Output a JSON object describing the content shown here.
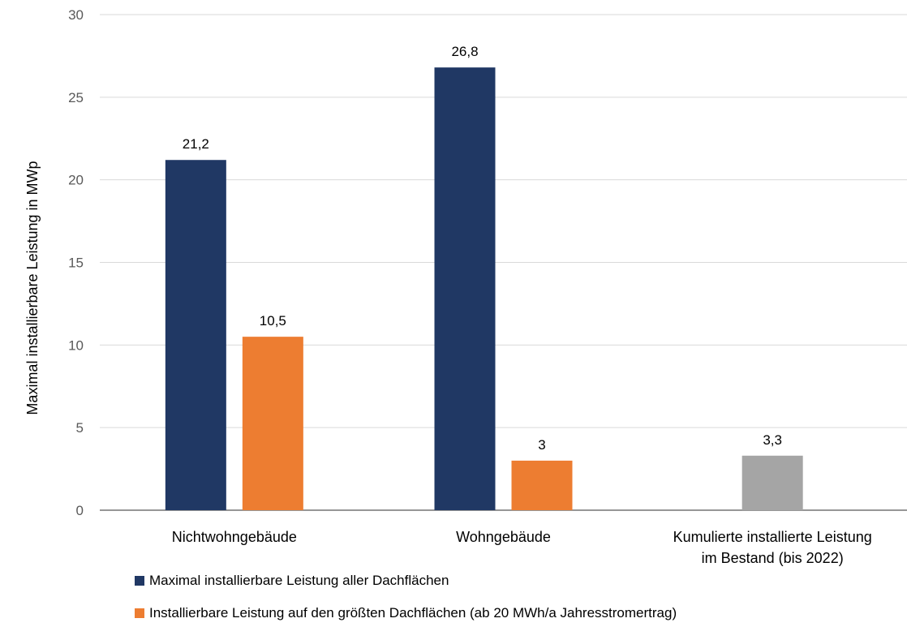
{
  "chart_data": {
    "type": "bar",
    "ylabel": "Maximal installierbare Leistung in MWp",
    "ylim": [
      0,
      30
    ],
    "yticks": [
      0,
      5,
      10,
      15,
      20,
      25,
      30
    ],
    "grid": true,
    "legend_position": "bottom",
    "categories": [
      [
        "Nichtwohngebäude"
      ],
      [
        "Wohngebäude"
      ],
      [
        "Kumulierte installierte Leistung",
        "im Bestand (bis 2022)"
      ]
    ],
    "series": [
      {
        "name": "Maximal installierbare Leistung aller Dachflächen",
        "color": "#203864",
        "values": [
          21.2,
          26.8,
          null
        ],
        "labels": [
          "21,2",
          "26,8",
          ""
        ]
      },
      {
        "name": "Installierbare Leistung auf den größten Dachflächen (ab 20 MWh/a Jahresstromertrag)",
        "color": "#ED7D31",
        "values": [
          10.5,
          3,
          null
        ],
        "labels": [
          "10,5",
          "3",
          ""
        ]
      },
      {
        "color": "#A5A5A5",
        "values": [
          null,
          null,
          3.3
        ],
        "labels": [
          "",
          "",
          "3,3"
        ]
      }
    ]
  }
}
